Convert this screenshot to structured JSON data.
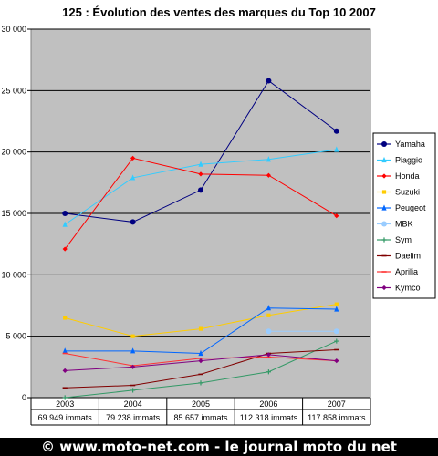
{
  "chart_data": {
    "type": "line",
    "title": "125 : Évolution des ventes des marques du Top 10 2007",
    "xlabel": "",
    "ylabel": "",
    "ylim": [
      0,
      30000
    ],
    "ytick_labels": [
      "0",
      "5 000",
      "10 000",
      "15 000",
      "20 000",
      "25 000",
      "30 000"
    ],
    "ytick_values": [
      0,
      5000,
      10000,
      15000,
      20000,
      25000,
      30000
    ],
    "categories": [
      "2003",
      "2004",
      "2005",
      "2006",
      "2007"
    ],
    "category_sublabels": [
      "69 949 immats",
      "79 238 immats",
      "85 657 immats",
      "112 318 immats",
      "117 858 immats"
    ],
    "grid": "horizontal",
    "legend_position": "right",
    "plot_background": "#c0c0c0",
    "series": [
      {
        "name": "Yamaha",
        "color": "#000080",
        "marker": "circle",
        "values": [
          15000,
          14300,
          16900,
          25800,
          21700
        ]
      },
      {
        "name": "Piaggio",
        "color": "#33ccff",
        "marker": "triangle",
        "values": [
          14100,
          17900,
          19000,
          19400,
          20200
        ]
      },
      {
        "name": "Honda",
        "color": "#ff0000",
        "marker": "diamond",
        "values": [
          12100,
          19500,
          18200,
          18100,
          14800
        ]
      },
      {
        "name": "Suzuki",
        "color": "#ffcc00",
        "marker": "square",
        "values": [
          6500,
          5000,
          5600,
          6700,
          7600
        ]
      },
      {
        "name": "Peugeot",
        "color": "#0066ff",
        "marker": "triangle",
        "values": [
          3800,
          3800,
          3600,
          7300,
          7200
        ]
      },
      {
        "name": "MBK",
        "color": "#99ccff",
        "marker": "circle",
        "values": [
          null,
          null,
          null,
          5400,
          5400
        ]
      },
      {
        "name": "Sym",
        "color": "#339966",
        "marker": "plus",
        "values": [
          0,
          600,
          1200,
          2100,
          4600
        ]
      },
      {
        "name": "Daelim",
        "color": "#800000",
        "marker": "dash",
        "values": [
          800,
          1000,
          1900,
          3600,
          3900
        ]
      },
      {
        "name": "Aprilia",
        "color": "#ff3333",
        "marker": "dash",
        "values": [
          3600,
          2600,
          3200,
          3300,
          3000
        ]
      },
      {
        "name": "Kymco",
        "color": "#800080",
        "marker": "diamond",
        "values": [
          2200,
          2500,
          3000,
          3500,
          3000
        ]
      }
    ]
  },
  "footer": {
    "text": "© www.moto-net.com - le journal moto du net"
  }
}
